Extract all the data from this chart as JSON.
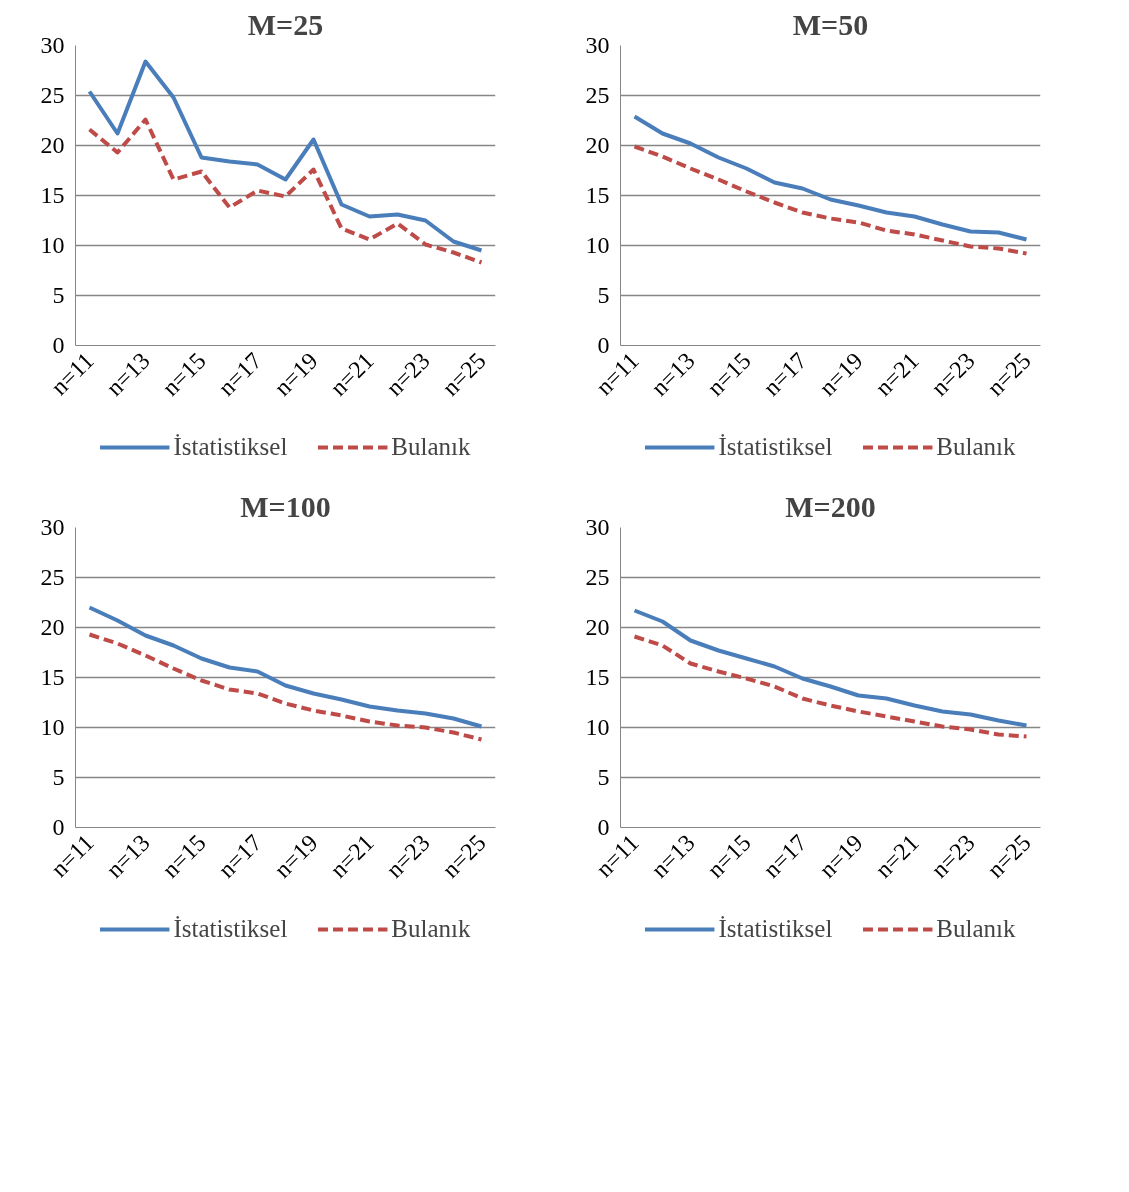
{
  "chart_data": [
    {
      "type": "line",
      "title": "M=25",
      "categories": [
        "n=11",
        null,
        "n=13",
        null,
        "n=15",
        null,
        "n=17",
        null,
        "n=19",
        null,
        "n=21",
        null,
        "n=23",
        null,
        "n=25"
      ],
      "ylim": [
        0,
        30
      ],
      "yticks": [
        0,
        5,
        10,
        15,
        20,
        25,
        30
      ],
      "grid": "y",
      "legend": "bottom",
      "series": [
        {
          "name": "İstatistiksel",
          "color": "#4a7ebb",
          "line_style": "solid",
          "values": [
            25.4,
            21.2,
            28.4,
            24.8,
            18.8,
            18.4,
            18.1,
            16.6,
            20.6,
            14.1,
            12.9,
            13.1,
            12.5,
            10.4,
            9.5
          ]
        },
        {
          "name": "Bulanık",
          "color": "#be4b48",
          "line_style": "dashed",
          "values": [
            21.6,
            19.3,
            22.6,
            16.6,
            17.4,
            13.8,
            15.5,
            14.9,
            17.6,
            11.7,
            10.6,
            12.2,
            10.1,
            9.3,
            8.3
          ]
        }
      ]
    },
    {
      "type": "line",
      "title": "M=50",
      "categories": [
        "n=11",
        null,
        "n=13",
        null,
        "n=15",
        null,
        "n=17",
        null,
        "n=19",
        null,
        "n=21",
        null,
        "n=23",
        null,
        "n=25"
      ],
      "ylim": [
        0,
        30
      ],
      "yticks": [
        0,
        5,
        10,
        15,
        20,
        25,
        30
      ],
      "grid": "y",
      "legend": "bottom",
      "series": [
        {
          "name": "İstatistiksel",
          "color": "#4a7ebb",
          "line_style": "solid",
          "values": [
            22.9,
            21.2,
            20.2,
            18.8,
            17.7,
            16.3,
            15.7,
            14.6,
            14.0,
            13.3,
            12.9,
            12.1,
            11.4,
            11.3,
            10.6
          ]
        },
        {
          "name": "Bulanık",
          "color": "#be4b48",
          "line_style": "dashed",
          "values": [
            19.9,
            18.9,
            17.7,
            16.6,
            15.4,
            14.3,
            13.3,
            12.7,
            12.3,
            11.5,
            11.1,
            10.5,
            9.9,
            9.7,
            9.2
          ]
        }
      ]
    },
    {
      "type": "line",
      "title": "M=100",
      "categories": [
        "n=11",
        null,
        "n=13",
        null,
        "n=15",
        null,
        "n=17",
        null,
        "n=19",
        null,
        "n=21",
        null,
        "n=23",
        null,
        "n=25"
      ],
      "ylim": [
        0,
        30
      ],
      "yticks": [
        0,
        5,
        10,
        15,
        20,
        25,
        30
      ],
      "grid": "y",
      "legend": "bottom",
      "series": [
        {
          "name": "İstatistiksel",
          "color": "#4a7ebb",
          "line_style": "solid",
          "values": [
            22.0,
            20.7,
            19.2,
            18.2,
            16.9,
            16.0,
            15.6,
            14.2,
            13.4,
            12.8,
            12.1,
            11.7,
            11.4,
            10.9,
            10.1
          ]
        },
        {
          "name": "Bulanık",
          "color": "#be4b48",
          "line_style": "dashed",
          "values": [
            19.3,
            18.4,
            17.2,
            15.9,
            14.7,
            13.8,
            13.4,
            12.4,
            11.7,
            11.2,
            10.6,
            10.2,
            10.0,
            9.5,
            8.8
          ]
        }
      ]
    },
    {
      "type": "line",
      "title": "M=200",
      "categories": [
        "n=11",
        null,
        "n=13",
        null,
        "n=15",
        null,
        "n=17",
        null,
        "n=19",
        null,
        "n=21",
        null,
        "n=23",
        null,
        "n=25"
      ],
      "ylim": [
        0,
        30
      ],
      "yticks": [
        0,
        5,
        10,
        15,
        20,
        25,
        30
      ],
      "grid": "y",
      "legend": "bottom",
      "series": [
        {
          "name": "İstatistiksel",
          "color": "#4a7ebb",
          "line_style": "solid",
          "values": [
            21.7,
            20.6,
            18.7,
            17.7,
            16.9,
            16.1,
            14.9,
            14.1,
            13.2,
            12.9,
            12.2,
            11.6,
            11.3,
            10.7,
            10.2
          ]
        },
        {
          "name": "Bulanık",
          "color": "#be4b48",
          "line_style": "dashed",
          "values": [
            19.1,
            18.2,
            16.4,
            15.6,
            14.9,
            14.1,
            12.9,
            12.2,
            11.6,
            11.1,
            10.6,
            10.1,
            9.8,
            9.3,
            9.1
          ]
        }
      ]
    }
  ]
}
